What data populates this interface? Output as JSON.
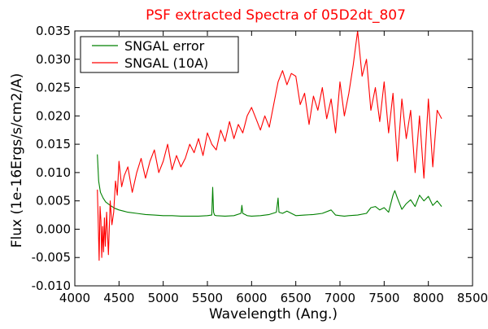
{
  "chart_data": {
    "type": "line",
    "title": "PSF extracted Spectra of 05D2dt_807",
    "xlabel": "Wavelength (Ang.)",
    "ylabel": "Flux (1e-16Ergs/s/cm2/A)",
    "xlim": [
      4000,
      8500
    ],
    "ylim": [
      -0.01,
      0.035
    ],
    "xticks": [
      4000,
      4500,
      5000,
      5500,
      6000,
      6500,
      7000,
      7500,
      8000,
      8500
    ],
    "xtick_labels": [
      "4000",
      "4500",
      "5000",
      "5500",
      "6000",
      "6500",
      "7000",
      "7500",
      "8000",
      "8500"
    ],
    "yticks": [
      -0.01,
      -0.005,
      0.0,
      0.005,
      0.01,
      0.015,
      0.02,
      0.025,
      0.03,
      0.035
    ],
    "ytick_labels": [
      "-0.010",
      "-0.005",
      "0.000",
      "0.005",
      "0.010",
      "0.015",
      "0.020",
      "0.025",
      "0.030",
      "0.035"
    ],
    "grid": false,
    "legend_position": "top-left",
    "series": [
      {
        "name": "SNGAL error",
        "color": "#008000",
        "x": [
          4255,
          4270,
          4290,
          4320,
          4350,
          4400,
          4450,
          4500,
          4550,
          4600,
          4700,
          4800,
          4900,
          5000,
          5100,
          5200,
          5300,
          5400,
          5500,
          5550,
          5560,
          5570,
          5580,
          5600,
          5700,
          5800,
          5880,
          5890,
          5900,
          5950,
          6000,
          6100,
          6200,
          6280,
          6300,
          6310,
          6350,
          6400,
          6500,
          6600,
          6700,
          6800,
          6900,
          6950,
          7000,
          7050,
          7100,
          7200,
          7300,
          7350,
          7400,
          7450,
          7500,
          7550,
          7600,
          7620,
          7650,
          7700,
          7750,
          7800,
          7850,
          7900,
          7950,
          8000,
          8050,
          8100,
          8150
        ],
        "y": [
          0.0132,
          0.0085,
          0.0065,
          0.0055,
          0.0048,
          0.0042,
          0.0037,
          0.0034,
          0.0032,
          0.003,
          0.0028,
          0.0026,
          0.0025,
          0.0024,
          0.0024,
          0.0023,
          0.0023,
          0.0023,
          0.0024,
          0.0025,
          0.0074,
          0.003,
          0.0025,
          0.0024,
          0.0023,
          0.0024,
          0.0028,
          0.0042,
          0.0028,
          0.0024,
          0.0023,
          0.0024,
          0.0026,
          0.003,
          0.0055,
          0.003,
          0.0028,
          0.0032,
          0.0024,
          0.0025,
          0.0026,
          0.0028,
          0.0034,
          0.0025,
          0.0024,
          0.0023,
          0.0024,
          0.0025,
          0.0028,
          0.0038,
          0.004,
          0.0034,
          0.0038,
          0.003,
          0.006,
          0.0068,
          0.0055,
          0.0035,
          0.0045,
          0.0052,
          0.004,
          0.006,
          0.005,
          0.0058,
          0.0042,
          0.005,
          0.004
        ]
      },
      {
        "name": "SNGAL (10A)",
        "color": "#ff0000",
        "x": [
          4255,
          4265,
          4275,
          4285,
          4295,
          4305,
          4315,
          4325,
          4335,
          4345,
          4360,
          4380,
          4400,
          4420,
          4440,
          4460,
          4480,
          4500,
          4530,
          4560,
          4600,
          4650,
          4700,
          4750,
          4800,
          4850,
          4900,
          4950,
          5000,
          5050,
          5100,
          5150,
          5200,
          5250,
          5300,
          5350,
          5400,
          5450,
          5500,
          5550,
          5600,
          5650,
          5700,
          5750,
          5800,
          5850,
          5900,
          5950,
          6000,
          6050,
          6100,
          6150,
          6200,
          6250,
          6300,
          6350,
          6400,
          6450,
          6500,
          6550,
          6600,
          6650,
          6700,
          6750,
          6800,
          6850,
          6900,
          6950,
          7000,
          7050,
          7100,
          7150,
          7200,
          7250,
          7300,
          7350,
          7400,
          7450,
          7500,
          7550,
          7600,
          7650,
          7700,
          7750,
          7800,
          7850,
          7900,
          7950,
          8000,
          8050,
          8100,
          8150
        ],
        "y": [
          0.007,
          0.001,
          -0.0055,
          0.004,
          0.0015,
          -0.005,
          0.0005,
          -0.004,
          0.002,
          -0.003,
          0.003,
          -0.0045,
          0.005,
          0.0008,
          0.003,
          0.0085,
          0.006,
          0.012,
          0.0075,
          0.0095,
          0.011,
          0.0065,
          0.01,
          0.0125,
          0.009,
          0.012,
          0.014,
          0.01,
          0.012,
          0.015,
          0.0105,
          0.013,
          0.011,
          0.0125,
          0.015,
          0.0135,
          0.016,
          0.013,
          0.017,
          0.015,
          0.014,
          0.0175,
          0.0155,
          0.019,
          0.016,
          0.0185,
          0.017,
          0.02,
          0.0215,
          0.0195,
          0.0175,
          0.02,
          0.018,
          0.022,
          0.026,
          0.028,
          0.0255,
          0.0275,
          0.027,
          0.022,
          0.024,
          0.0185,
          0.0235,
          0.021,
          0.025,
          0.0195,
          0.023,
          0.017,
          0.026,
          0.02,
          0.024,
          0.029,
          0.035,
          0.027,
          0.03,
          0.021,
          0.025,
          0.019,
          0.026,
          0.017,
          0.024,
          0.012,
          0.023,
          0.016,
          0.021,
          0.01,
          0.02,
          0.009,
          0.023,
          0.011,
          0.021,
          0.0195
        ]
      }
    ]
  }
}
